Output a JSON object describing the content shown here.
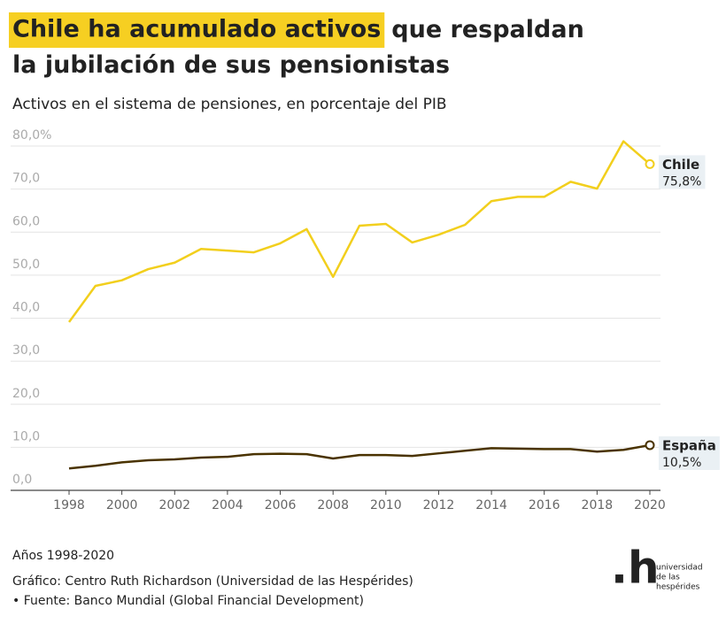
{
  "chart_data": {
    "type": "line",
    "title_highlight": "Chile ha acumulado activos",
    "title": "que respaldan la jubilación de sus pensionistas",
    "subtitle": "Activos en el sistema de pensiones, en porcentaje del PIB",
    "x": [
      1998,
      1999,
      2000,
      2001,
      2002,
      2003,
      2004,
      2005,
      2006,
      2007,
      2008,
      2009,
      2010,
      2011,
      2012,
      2013,
      2014,
      2015,
      2016,
      2017,
      2018,
      2019,
      2020
    ],
    "series": [
      {
        "name": "Chile",
        "color": "#f2cf1d",
        "values": [
          39.1,
          47.5,
          48.8,
          51.4,
          52.9,
          56.1,
          55.7,
          55.3,
          57.4,
          60.7,
          49.6,
          61.5,
          61.9,
          57.6,
          59.4,
          61.7,
          67.2,
          68.2,
          68.2,
          71.7,
          70.1,
          81.1,
          75.8
        ],
        "value_labels": [
          null,
          null,
          null,
          null,
          null,
          null,
          null,
          null,
          null,
          null,
          null,
          null,
          null,
          null,
          null,
          null,
          null,
          null,
          null,
          null,
          null,
          null,
          "75,8%"
        ]
      },
      {
        "name": "España",
        "color": "#4a3300",
        "values": [
          5.1,
          5.7,
          6.5,
          7.0,
          7.2,
          7.6,
          7.8,
          8.4,
          8.5,
          8.4,
          7.4,
          8.2,
          8.2,
          8.0,
          8.6,
          9.2,
          9.8,
          9.7,
          9.6,
          9.6,
          9.0,
          9.4,
          10.5
        ],
        "value_labels": [
          null,
          null,
          null,
          null,
          null,
          null,
          null,
          null,
          null,
          null,
          null,
          null,
          null,
          null,
          null,
          null,
          null,
          null,
          null,
          null,
          null,
          null,
          "10,5%"
        ]
      }
    ],
    "xlim": [
      1998,
      2020
    ],
    "xticks": [
      1998,
      2000,
      2002,
      2004,
      2006,
      2008,
      2010,
      2012,
      2014,
      2016,
      2018,
      2020
    ],
    "ylim": [
      0,
      80
    ],
    "yticks": [
      {
        "value": 0,
        "label": "0,0"
      },
      {
        "value": 10,
        "label": "10,0"
      },
      {
        "value": 20,
        "label": "20,0"
      },
      {
        "value": 30,
        "label": "30,0"
      },
      {
        "value": 40,
        "label": "40,0"
      },
      {
        "value": 50,
        "label": "50,0"
      },
      {
        "value": 60,
        "label": "60,0"
      },
      {
        "value": 70,
        "label": "70,0"
      },
      {
        "value": 80,
        "label": "80,0%"
      }
    ],
    "grid": true,
    "notes": [
      "Años 1998-2020",
      "Gráfico: Centro Ruth Richardson (Universidad de las Hespérides)",
      "• Fuente: Banco Mundial (Global Financial Development)"
    ],
    "logo": {
      "mark": ".h",
      "lines": [
        "universidad",
        "de las",
        "hespérides"
      ]
    }
  }
}
